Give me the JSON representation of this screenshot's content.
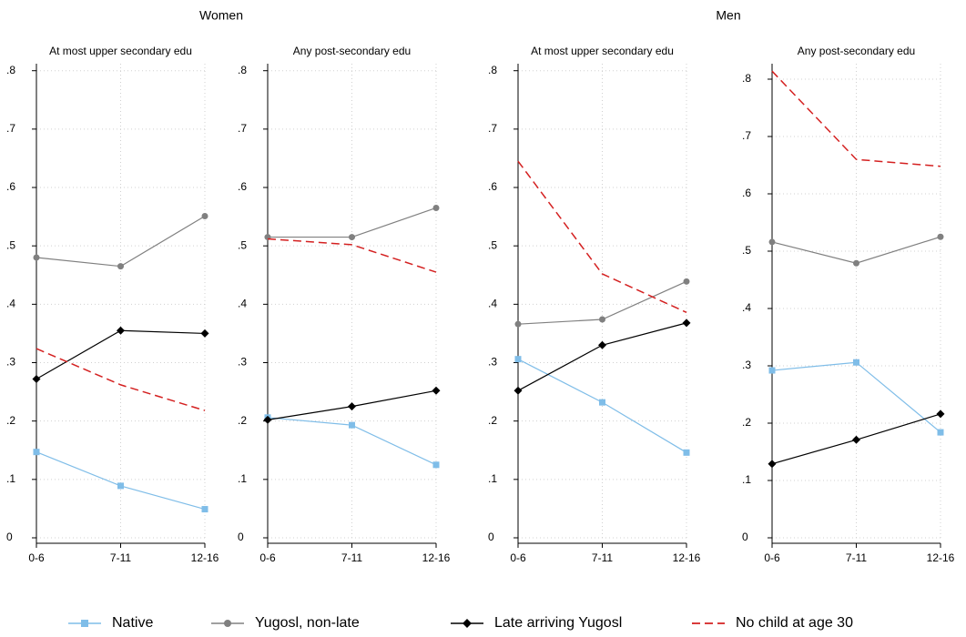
{
  "groups": [
    {
      "title": "Women"
    },
    {
      "title": "Men"
    }
  ],
  "legend": "bottom",
  "chart_data": [
    {
      "type": "line",
      "title": "At most upper secondary edu",
      "categories": [
        "0-6",
        "7-11",
        "12-16"
      ],
      "ylim": [
        0,
        0.812
      ],
      "yticks": [
        0,
        {
          "value": 0.1,
          "label": ".1"
        },
        {
          "value": 0.2,
          "label": ".2"
        },
        {
          "value": 0.3,
          "label": ".3"
        },
        {
          "value": 0.4,
          "label": ".4"
        },
        {
          "value": 0.5,
          "label": ".5"
        },
        {
          "value": 0.6,
          "label": ".6"
        },
        {
          "value": 0.7,
          "label": ".7"
        },
        {
          "value": 0.8,
          "label": ".8"
        }
      ],
      "grid": true,
      "series": [
        {
          "name": "Native",
          "color": "#7fbde8",
          "marker": "square",
          "dashed": false,
          "values": [
            0.147,
            0.089,
            0.049
          ]
        },
        {
          "name": "Yugosl, non-late",
          "color": "#808080",
          "marker": "circle",
          "dashed": false,
          "values": [
            0.48,
            0.465,
            0.551
          ]
        },
        {
          "name": "Late arriving Yugosl",
          "color": "#000000",
          "marker": "diamond",
          "dashed": false,
          "values": [
            0.272,
            0.355,
            0.35
          ]
        },
        {
          "name": "No child at age 30",
          "color": "#d42020",
          "marker": "none",
          "dashed": true,
          "values": [
            0.324,
            0.262,
            0.218
          ]
        }
      ]
    },
    {
      "type": "line",
      "title": "Any post-secondary edu",
      "categories": [
        "0-6",
        "7-11",
        "12-16"
      ],
      "ylim": [
        0,
        0.812
      ],
      "yticks": [
        0,
        {
          "value": 0.1,
          "label": ".1"
        },
        {
          "value": 0.2,
          "label": ".2"
        },
        {
          "value": 0.3,
          "label": ".3"
        },
        {
          "value": 0.4,
          "label": ".4"
        },
        {
          "value": 0.5,
          "label": ".5"
        },
        {
          "value": 0.6,
          "label": ".6"
        },
        {
          "value": 0.7,
          "label": ".7"
        },
        {
          "value": 0.8,
          "label": ".8"
        }
      ],
      "grid": true,
      "series": [
        {
          "name": "Native",
          "color": "#7fbde8",
          "marker": "square",
          "dashed": false,
          "values": [
            0.206,
            0.193,
            0.125
          ]
        },
        {
          "name": "Yugosl, non-late",
          "color": "#808080",
          "marker": "circle",
          "dashed": false,
          "values": [
            0.515,
            0.515,
            0.565
          ]
        },
        {
          "name": "Late arriving Yugosl",
          "color": "#000000",
          "marker": "diamond",
          "dashed": false,
          "values": [
            0.202,
            0.225,
            0.252
          ]
        },
        {
          "name": "No child at age 30",
          "color": "#d42020",
          "marker": "none",
          "dashed": true,
          "values": [
            0.512,
            0.502,
            0.455
          ]
        }
      ]
    },
    {
      "type": "line",
      "title": "At most upper secondary edu",
      "categories": [
        "0-6",
        "7-11",
        "12-16"
      ],
      "ylim": [
        0,
        0.812
      ],
      "yticks": [
        0,
        {
          "value": 0.1,
          "label": ".1"
        },
        {
          "value": 0.2,
          "label": ".2"
        },
        {
          "value": 0.3,
          "label": ".3"
        },
        {
          "value": 0.4,
          "label": ".4"
        },
        {
          "value": 0.5,
          "label": ".5"
        },
        {
          "value": 0.6,
          "label": ".6"
        },
        {
          "value": 0.7,
          "label": ".7"
        },
        {
          "value": 0.8,
          "label": ".8"
        }
      ],
      "grid": true,
      "series": [
        {
          "name": "Native",
          "color": "#7fbde8",
          "marker": "square",
          "dashed": false,
          "values": [
            0.306,
            0.232,
            0.146
          ]
        },
        {
          "name": "Yugosl, non-late",
          "color": "#808080",
          "marker": "circle",
          "dashed": false,
          "values": [
            0.366,
            0.374,
            0.439
          ]
        },
        {
          "name": "Late arriving Yugosl",
          "color": "#000000",
          "marker": "diamond",
          "dashed": false,
          "values": [
            0.252,
            0.33,
            0.368
          ]
        },
        {
          "name": "No child at age 30",
          "color": "#d42020",
          "marker": "none",
          "dashed": true,
          "values": [
            0.645,
            0.452,
            0.386
          ]
        }
      ]
    },
    {
      "type": "line",
      "title": "Any post-secondary edu",
      "categories": [
        "0-6",
        "7-11",
        "12-16"
      ],
      "ylim": [
        0,
        0.827
      ],
      "yticks": [
        0,
        {
          "value": 0.1,
          "label": ".1"
        },
        {
          "value": 0.2,
          "label": ".2"
        },
        {
          "value": 0.3,
          "label": ".3"
        },
        {
          "value": 0.4,
          "label": ".4"
        },
        {
          "value": 0.5,
          "label": ".5"
        },
        {
          "value": 0.6,
          "label": ".6"
        },
        {
          "value": 0.7,
          "label": ".7"
        },
        {
          "value": 0.8,
          "label": ".8"
        }
      ],
      "grid": true,
      "series": [
        {
          "name": "Native",
          "color": "#7fbde8",
          "marker": "square",
          "dashed": false,
          "values": [
            0.292,
            0.306,
            0.184
          ]
        },
        {
          "name": "Yugosl, non-late",
          "color": "#808080",
          "marker": "circle",
          "dashed": false,
          "values": [
            0.516,
            0.479,
            0.525
          ]
        },
        {
          "name": "Late arriving Yugosl",
          "color": "#000000",
          "marker": "diamond",
          "dashed": false,
          "values": [
            0.129,
            0.171,
            0.216
          ]
        },
        {
          "name": "No child at age 30",
          "color": "#d42020",
          "marker": "none",
          "dashed": true,
          "values": [
            0.814,
            0.66,
            0.648
          ]
        }
      ]
    }
  ]
}
